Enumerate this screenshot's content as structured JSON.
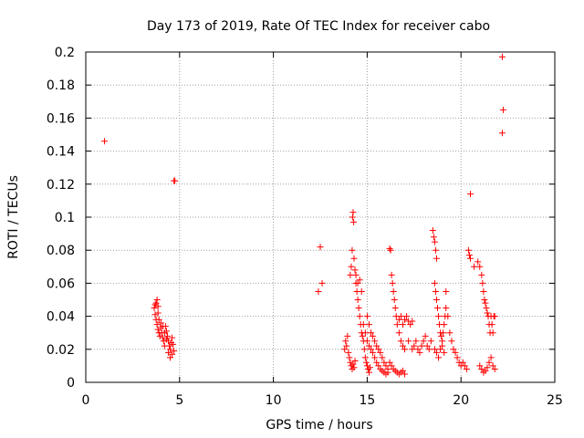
{
  "chart_data": {
    "type": "scatter",
    "title": "Day 173 of 2019, Rate Of TEC Index for receiver cabo",
    "xlabel": "GPS time / hours",
    "ylabel": "ROTI / TECUs",
    "xlim": [
      0,
      25
    ],
    "ylim": [
      0,
      0.2
    ],
    "x_ticks": [
      0,
      5,
      10,
      15,
      20,
      25
    ],
    "y_ticks": [
      0,
      0.02,
      0.04,
      0.06,
      0.08,
      0.1,
      0.12,
      0.14,
      0.16,
      0.18,
      0.2
    ],
    "x_tick_labels": [
      "0",
      "5",
      "10",
      "15",
      "20",
      "25"
    ],
    "y_tick_labels": [
      "0",
      "0.02",
      "0.04",
      "0.06",
      "0.08",
      "0.1",
      "0.12",
      "0.14",
      "0.16",
      "0.18",
      "0.2"
    ],
    "grid": true,
    "marker": "+",
    "marker_color": "#ff0000",
    "points": [
      [
        1.0,
        0.146
      ],
      [
        4.7,
        0.122
      ],
      [
        4.75,
        0.122
      ],
      [
        3.65,
        0.045
      ],
      [
        3.7,
        0.047
      ],
      [
        3.75,
        0.048
      ],
      [
        3.8,
        0.05
      ],
      [
        3.85,
        0.046
      ],
      [
        3.7,
        0.041
      ],
      [
        3.75,
        0.038
      ],
      [
        3.8,
        0.035
      ],
      [
        3.85,
        0.032
      ],
      [
        3.9,
        0.03
      ],
      [
        3.95,
        0.028
      ],
      [
        4.0,
        0.033
      ],
      [
        4.05,
        0.03
      ],
      [
        4.1,
        0.027
      ],
      [
        4.15,
        0.025
      ],
      [
        4.2,
        0.03
      ],
      [
        4.25,
        0.034
      ],
      [
        4.3,
        0.031
      ],
      [
        4.35,
        0.028
      ],
      [
        4.4,
        0.025
      ],
      [
        4.45,
        0.022
      ],
      [
        4.5,
        0.02
      ],
      [
        4.55,
        0.024
      ],
      [
        4.6,
        0.027
      ],
      [
        4.65,
        0.023
      ],
      [
        4.7,
        0.019
      ],
      [
        3.9,
        0.038
      ],
      [
        4.0,
        0.036
      ],
      [
        4.2,
        0.022
      ],
      [
        4.4,
        0.018
      ],
      [
        4.5,
        0.015
      ],
      [
        4.6,
        0.017
      ],
      [
        3.85,
        0.042
      ],
      [
        4.1,
        0.034
      ],
      [
        4.3,
        0.026
      ],
      [
        12.4,
        0.055
      ],
      [
        12.5,
        0.082
      ],
      [
        12.6,
        0.06
      ],
      [
        13.8,
        0.02
      ],
      [
        13.85,
        0.025
      ],
      [
        13.9,
        0.022
      ],
      [
        13.95,
        0.028
      ],
      [
        14.0,
        0.018
      ],
      [
        14.05,
        0.015
      ],
      [
        14.1,
        0.012
      ],
      [
        14.15,
        0.01
      ],
      [
        14.2,
        0.008
      ],
      [
        14.25,
        0.011
      ],
      [
        14.3,
        0.009
      ],
      [
        14.35,
        0.013
      ],
      [
        14.1,
        0.065
      ],
      [
        14.15,
        0.07
      ],
      [
        14.2,
        0.08
      ],
      [
        14.22,
        0.1
      ],
      [
        14.25,
        0.103
      ],
      [
        14.28,
        0.097
      ],
      [
        14.3,
        0.075
      ],
      [
        14.35,
        0.068
      ],
      [
        14.4,
        0.06
      ],
      [
        14.45,
        0.055
      ],
      [
        14.5,
        0.05
      ],
      [
        14.55,
        0.045
      ],
      [
        14.6,
        0.04
      ],
      [
        14.65,
        0.035
      ],
      [
        14.7,
        0.03
      ],
      [
        14.75,
        0.028
      ],
      [
        14.8,
        0.025
      ],
      [
        14.85,
        0.02
      ],
      [
        14.9,
        0.015
      ],
      [
        14.95,
        0.012
      ],
      [
        15.0,
        0.01
      ],
      [
        15.05,
        0.008
      ],
      [
        15.1,
        0.006
      ],
      [
        15.15,
        0.009
      ],
      [
        14.4,
        0.065
      ],
      [
        14.5,
        0.06
      ],
      [
        14.6,
        0.062
      ],
      [
        14.7,
        0.055
      ],
      [
        14.8,
        0.035
      ],
      [
        14.9,
        0.03
      ],
      [
        15.0,
        0.025
      ],
      [
        15.1,
        0.022
      ],
      [
        15.2,
        0.02
      ],
      [
        15.3,
        0.018
      ],
      [
        15.4,
        0.015
      ],
      [
        15.5,
        0.012
      ],
      [
        15.6,
        0.01
      ],
      [
        15.7,
        0.008
      ],
      [
        15.8,
        0.007
      ],
      [
        15.9,
        0.006
      ],
      [
        16.0,
        0.005
      ],
      [
        16.1,
        0.006
      ],
      [
        15.0,
        0.04
      ],
      [
        15.1,
        0.035
      ],
      [
        15.2,
        0.03
      ],
      [
        15.3,
        0.028
      ],
      [
        15.4,
        0.025
      ],
      [
        15.5,
        0.022
      ],
      [
        15.6,
        0.02
      ],
      [
        15.7,
        0.018
      ],
      [
        15.8,
        0.015
      ],
      [
        15.9,
        0.012
      ],
      [
        16.0,
        0.01
      ],
      [
        16.1,
        0.008
      ],
      [
        16.2,
        0.081
      ],
      [
        16.25,
        0.08
      ],
      [
        16.3,
        0.065
      ],
      [
        16.35,
        0.06
      ],
      [
        16.4,
        0.055
      ],
      [
        16.45,
        0.05
      ],
      [
        16.5,
        0.045
      ],
      [
        16.55,
        0.04
      ],
      [
        16.6,
        0.035
      ],
      [
        16.2,
        0.012
      ],
      [
        16.3,
        0.01
      ],
      [
        16.4,
        0.008
      ],
      [
        16.5,
        0.007
      ],
      [
        16.6,
        0.006
      ],
      [
        16.7,
        0.005
      ],
      [
        16.8,
        0.006
      ],
      [
        16.9,
        0.007
      ],
      [
        17.0,
        0.005
      ],
      [
        16.7,
        0.038
      ],
      [
        16.8,
        0.04
      ],
      [
        16.9,
        0.035
      ],
      [
        17.0,
        0.038
      ],
      [
        17.1,
        0.04
      ],
      [
        17.2,
        0.037
      ],
      [
        17.3,
        0.035
      ],
      [
        17.4,
        0.037
      ],
      [
        16.7,
        0.03
      ],
      [
        16.8,
        0.025
      ],
      [
        16.9,
        0.022
      ],
      [
        17.0,
        0.02
      ],
      [
        17.2,
        0.025
      ],
      [
        17.4,
        0.02
      ],
      [
        17.5,
        0.022
      ],
      [
        17.6,
        0.025
      ],
      [
        17.7,
        0.02
      ],
      [
        17.8,
        0.018
      ],
      [
        17.9,
        0.022
      ],
      [
        18.0,
        0.025
      ],
      [
        18.1,
        0.028
      ],
      [
        18.2,
        0.022
      ],
      [
        18.3,
        0.02
      ],
      [
        18.4,
        0.025
      ],
      [
        18.5,
        0.092
      ],
      [
        18.55,
        0.088
      ],
      [
        18.6,
        0.085
      ],
      [
        18.65,
        0.08
      ],
      [
        18.7,
        0.075
      ],
      [
        18.6,
        0.06
      ],
      [
        18.65,
        0.055
      ],
      [
        18.7,
        0.05
      ],
      [
        18.75,
        0.045
      ],
      [
        18.8,
        0.04
      ],
      [
        18.85,
        0.035
      ],
      [
        18.9,
        0.03
      ],
      [
        18.95,
        0.028
      ],
      [
        19.0,
        0.025
      ],
      [
        19.05,
        0.03
      ],
      [
        19.1,
        0.035
      ],
      [
        19.15,
        0.04
      ],
      [
        19.2,
        0.045
      ],
      [
        18.6,
        0.02
      ],
      [
        18.7,
        0.018
      ],
      [
        18.8,
        0.015
      ],
      [
        18.9,
        0.02
      ],
      [
        19.0,
        0.022
      ],
      [
        19.1,
        0.018
      ],
      [
        19.2,
        0.055
      ],
      [
        19.3,
        0.04
      ],
      [
        19.4,
        0.03
      ],
      [
        19.5,
        0.025
      ],
      [
        19.6,
        0.02
      ],
      [
        19.7,
        0.018
      ],
      [
        19.8,
        0.015
      ],
      [
        19.9,
        0.012
      ],
      [
        20.0,
        0.01
      ],
      [
        20.1,
        0.012
      ],
      [
        20.2,
        0.01
      ],
      [
        20.3,
        0.008
      ],
      [
        20.5,
        0.114
      ],
      [
        20.4,
        0.08
      ],
      [
        20.45,
        0.077
      ],
      [
        20.5,
        0.075
      ],
      [
        20.7,
        0.07
      ],
      [
        20.9,
        0.073
      ],
      [
        21.0,
        0.07
      ],
      [
        21.1,
        0.065
      ],
      [
        21.15,
        0.06
      ],
      [
        21.2,
        0.055
      ],
      [
        21.25,
        0.05
      ],
      [
        21.3,
        0.048
      ],
      [
        21.35,
        0.045
      ],
      [
        21.4,
        0.042
      ],
      [
        21.45,
        0.04
      ],
      [
        21.5,
        0.035
      ],
      [
        21.55,
        0.03
      ],
      [
        21.6,
        0.04
      ],
      [
        21.65,
        0.035
      ],
      [
        21.7,
        0.03
      ],
      [
        21.75,
        0.04
      ],
      [
        21.8,
        0.04
      ],
      [
        21.0,
        0.01
      ],
      [
        21.1,
        0.008
      ],
      [
        21.2,
        0.006
      ],
      [
        21.3,
        0.007
      ],
      [
        21.4,
        0.009
      ],
      [
        21.5,
        0.012
      ],
      [
        21.6,
        0.015
      ],
      [
        21.7,
        0.01
      ],
      [
        21.8,
        0.008
      ],
      [
        22.2,
        0.197
      ],
      [
        22.25,
        0.165
      ],
      [
        22.2,
        0.151
      ]
    ]
  }
}
